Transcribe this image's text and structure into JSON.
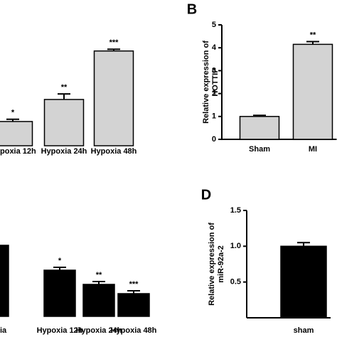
{
  "chart_data": [
    {
      "type": "bar",
      "categories": [
        "poxia 12h",
        "Hypoxia 24h",
        "Hypoxia 48h"
      ],
      "values": [
        1.1,
        2.1,
        4.3
      ],
      "errors": [
        0.1,
        0.25,
        0.08
      ],
      "annotations": [
        "*",
        "**",
        "***"
      ],
      "color": "#d3d3d3",
      "ylim": [
        0,
        5
      ]
    },
    {
      "type": "bar",
      "panel": "B",
      "ylabel": [
        "Relative expression of",
        "HOTTIP"
      ],
      "categories": [
        "Sham",
        "MI"
      ],
      "values": [
        1.0,
        4.15
      ],
      "errors": [
        0.05,
        0.12
      ],
      "annotations": [
        null,
        "**"
      ],
      "color": "#d3d3d3",
      "ylim": [
        0,
        5
      ],
      "yticks": [
        0,
        1,
        2,
        3,
        4,
        5
      ]
    },
    {
      "type": "bar",
      "categories": [
        "ia",
        "Hypoxia 12h",
        "Hypoxia 24h",
        "Hypoxia 48h"
      ],
      "values": [
        1.0,
        0.65,
        0.45,
        0.32
      ],
      "errors": [
        0.03,
        0.04,
        0.04,
        0.04
      ],
      "annotations": [
        null,
        "*",
        "**",
        "***"
      ],
      "color": "#000000",
      "ylim": [
        0,
        1.2
      ]
    },
    {
      "type": "bar",
      "panel": "D",
      "ylabel": [
        "Relative expression of",
        "miR-92a-2"
      ],
      "categories": [
        "sham"
      ],
      "values": [
        1.0
      ],
      "errors": [
        0.05
      ],
      "color": "#000000",
      "ylim": [
        0,
        1.5
      ],
      "yticks": [
        0.5,
        {
          "value": 1,
          "label": "1.0"
        },
        1.5
      ]
    }
  ]
}
